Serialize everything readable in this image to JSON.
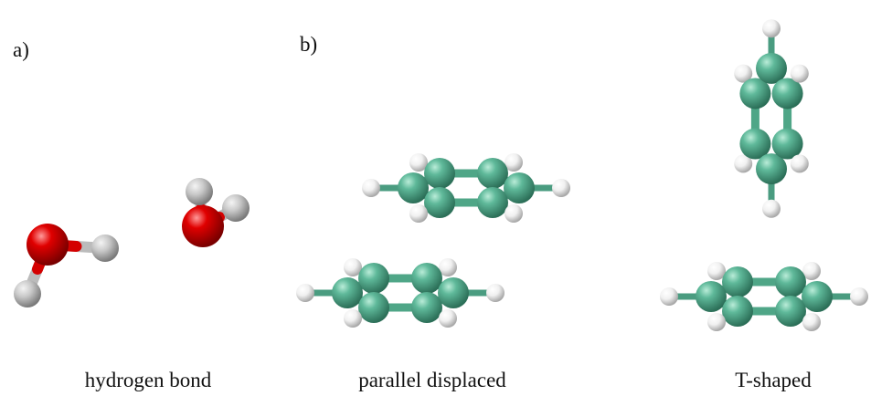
{
  "panels": [
    {
      "label": "a)",
      "caption": "hydrogen bond"
    },
    {
      "label": "b)",
      "captions": [
        "parallel displaced",
        "T-shaped"
      ]
    }
  ]
}
